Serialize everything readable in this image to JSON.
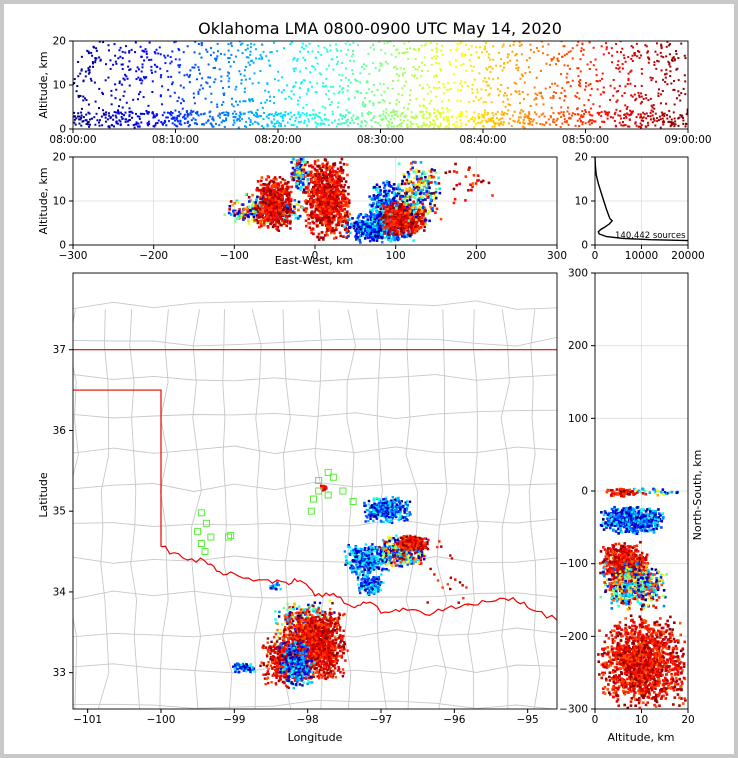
{
  "chart_data": [
    {
      "type": "scatter",
      "panel": "time-altitude",
      "title": "Oklahoma LMA 0800-0900 UTC May 14, 2020",
      "ylabel": "Altitude, km",
      "xlabel": "",
      "ylim": [
        0,
        20
      ],
      "yticks": [
        "0",
        "10",
        "20"
      ],
      "xticks": [
        "08:00:00",
        "08:10:00",
        "08:20:00",
        "08:30:00",
        "08:40:00",
        "08:50:00",
        "09:00:00"
      ],
      "xlim_minutes": [
        0,
        60
      ],
      "color_by": "time",
      "colormap": "jet",
      "clusters": [
        {
          "t0": 0,
          "t1": 60,
          "a0": 0.5,
          "a1": 20,
          "n": 1400
        },
        {
          "t0": 0,
          "t1": 60,
          "a0": 0.3,
          "a1": 4,
          "n": 700
        }
      ]
    },
    {
      "type": "scatter",
      "panel": "east-west-altitude",
      "xlabel": "East-West, km",
      "ylabel": "Altitude, km",
      "xlim": [
        -300,
        300
      ],
      "ylim": [
        0,
        20
      ],
      "xticks": [
        "−300",
        "−200",
        "−100",
        "0",
        "100",
        "200",
        "300"
      ],
      "yticks": [
        "0",
        "10",
        "20"
      ],
      "clusters": [
        {
          "x0": -115,
          "x1": -10,
          "y0": 4,
          "y1": 12,
          "c": "mix",
          "n": 300
        },
        {
          "x0": -75,
          "x1": -25,
          "y0": 3,
          "y1": 16,
          "c": "hot",
          "n": 500
        },
        {
          "x0": -30,
          "x1": -5,
          "y0": 12,
          "y1": 20,
          "c": "mix",
          "n": 100
        },
        {
          "x0": -15,
          "x1": 45,
          "y0": 1,
          "y1": 20,
          "c": "hot",
          "n": 900
        },
        {
          "x0": 35,
          "x1": 125,
          "y0": 0.3,
          "y1": 8,
          "c": "cool",
          "n": 500
        },
        {
          "x0": 65,
          "x1": 115,
          "y0": 4,
          "y1": 15,
          "c": "cool",
          "n": 250
        },
        {
          "x0": 80,
          "x1": 140,
          "y0": 2,
          "y1": 10,
          "c": "hot",
          "n": 500
        },
        {
          "x0": 100,
          "x1": 160,
          "y0": 4,
          "y1": 20,
          "c": "mix",
          "n": 250
        },
        {
          "x0": 140,
          "x1": 225,
          "y0": 8,
          "y1": 20,
          "c": "hot",
          "n": 30
        }
      ]
    },
    {
      "type": "line",
      "panel": "altitude-histogram",
      "xlim": [
        0,
        20000
      ],
      "ylim": [
        0,
        20
      ],
      "xticks": [
        "0",
        "10000",
        "20000"
      ],
      "yticks": [
        "0",
        "10",
        "20"
      ],
      "annotation": "140,442 sources",
      "profile": [
        [
          0,
          20
        ],
        [
          80,
          18
        ],
        [
          250,
          16
        ],
        [
          700,
          14
        ],
        [
          1300,
          12
        ],
        [
          1900,
          10
        ],
        [
          2500,
          8
        ],
        [
          3200,
          6
        ],
        [
          3700,
          5.5
        ],
        [
          3100,
          4.8
        ],
        [
          2000,
          4
        ],
        [
          1200,
          3.5
        ],
        [
          700,
          3
        ],
        [
          900,
          2.5
        ],
        [
          2500,
          1.9
        ],
        [
          6000,
          1.5
        ],
        [
          12000,
          1.2
        ],
        [
          20000,
          1.0
        ]
      ]
    },
    {
      "type": "scatter",
      "panel": "plan-view-map",
      "xlabel": "Longitude",
      "ylabel": "Latitude",
      "xlim": [
        -101.2,
        -94.6
      ],
      "ylim": [
        32.55,
        37.95
      ],
      "xticks": [
        "−101",
        "−100",
        "−99",
        "−98",
        "−97",
        "−96",
        "−95"
      ],
      "yticks": [
        "33",
        "34",
        "35",
        "36",
        "37"
      ],
      "stations": [
        [
          -97.72,
          35.48
        ],
        [
          -97.85,
          35.38
        ],
        [
          -97.65,
          35.42
        ],
        [
          -97.52,
          35.25
        ],
        [
          -97.72,
          35.2
        ],
        [
          -97.92,
          35.15
        ],
        [
          -97.38,
          35.12
        ],
        [
          -97.85,
          35.25
        ],
        [
          -97.95,
          35.0
        ],
        [
          -99.45,
          34.98
        ],
        [
          -99.38,
          34.85
        ],
        [
          -99.5,
          34.75
        ],
        [
          -99.32,
          34.68
        ],
        [
          -99.45,
          34.6
        ],
        [
          -99.4,
          34.5
        ],
        [
          -99.05,
          34.7
        ],
        [
          -99.08,
          34.68
        ]
      ],
      "clusters": [
        {
          "x0": -97.25,
          "x1": -96.55,
          "y0": 34.85,
          "y1": 35.18,
          "c": "cool",
          "n": 350
        },
        {
          "x0": -97.5,
          "x1": -96.85,
          "y0": 34.2,
          "y1": 34.6,
          "c": "cool",
          "n": 350
        },
        {
          "x0": -97.35,
          "x1": -96.95,
          "y0": 33.95,
          "y1": 34.25,
          "c": "cool",
          "n": 150
        },
        {
          "x0": -97.05,
          "x1": -96.35,
          "y0": 34.3,
          "y1": 34.72,
          "c": "mix",
          "n": 400
        },
        {
          "x0": -96.8,
          "x1": -96.35,
          "y0": 34.5,
          "y1": 34.7,
          "c": "hot",
          "n": 250
        },
        {
          "x0": -98.5,
          "x1": -97.55,
          "y0": 33.3,
          "y1": 33.9,
          "c": "mix",
          "n": 300
        },
        {
          "x0": -98.35,
          "x1": -97.45,
          "y0": 32.9,
          "y1": 33.8,
          "c": "hot",
          "n": 1400
        },
        {
          "x0": -98.65,
          "x1": -98.0,
          "y0": 32.8,
          "y1": 33.5,
          "c": "hot",
          "n": 400
        },
        {
          "x0": -98.4,
          "x1": -97.9,
          "y0": 32.8,
          "y1": 33.4,
          "c": "cool",
          "n": 300
        },
        {
          "x0": -99.05,
          "x1": -98.7,
          "y0": 33.0,
          "y1": 33.12,
          "c": "cool",
          "n": 60
        },
        {
          "x0": -97.83,
          "x1": -97.73,
          "y0": 35.25,
          "y1": 35.32,
          "c": "hot",
          "n": 40
        },
        {
          "x0": -98.55,
          "x1": -98.35,
          "y0": 34.0,
          "y1": 34.15,
          "c": "cool",
          "n": 20
        },
        {
          "x0": -96.5,
          "x1": -95.5,
          "y0": 33.6,
          "y1": 34.9,
          "c": "hot",
          "n": 20
        }
      ]
    },
    {
      "type": "scatter",
      "panel": "altitude-north-south",
      "xlabel": "Altitude, km",
      "ylabel": "North-South, km",
      "xlim": [
        0,
        20
      ],
      "ylim": [
        -300,
        300
      ],
      "xticks": [
        "0",
        "10",
        "20"
      ],
      "yticks": [
        "−300",
        "−200",
        "−100",
        "0",
        "100",
        "200",
        "300"
      ],
      "clusters": [
        {
          "x0": 0.5,
          "x1": 20,
          "y0": -300,
          "y1": -170,
          "c": "hot",
          "n": 1400
        },
        {
          "x0": 1,
          "x1": 12,
          "y0": -130,
          "y1": -70,
          "c": "hot",
          "n": 500
        },
        {
          "x0": 1,
          "x1": 16,
          "y0": -165,
          "y1": -95,
          "c": "mix",
          "n": 500
        },
        {
          "x0": 1,
          "x1": 15,
          "y0": -60,
          "y1": -20,
          "c": "cool",
          "n": 500
        },
        {
          "x0": 2,
          "x1": 10,
          "y0": -8,
          "y1": 4,
          "c": "hot",
          "n": 60
        },
        {
          "x0": 5,
          "x1": 20,
          "y0": -8,
          "y1": 6,
          "c": "mix",
          "n": 30
        }
      ]
    }
  ]
}
